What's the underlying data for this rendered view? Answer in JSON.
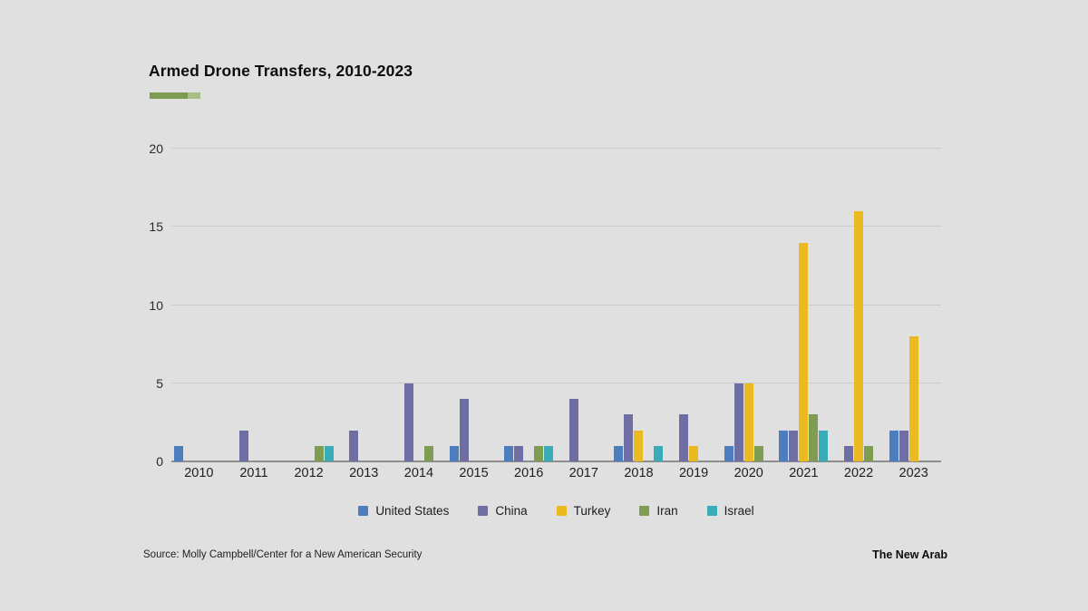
{
  "header": {
    "title": "Armed Drone Transfers, 2010-2023"
  },
  "accent": {
    "dark_color": "#7e9b52",
    "light_color": "#a9bd86"
  },
  "chart_data": {
    "type": "bar",
    "title": "Armed Drone Transfers, 2010-2023",
    "xlabel": "",
    "ylabel": "",
    "ylim": [
      0,
      20
    ],
    "yticks": [
      0,
      5,
      10,
      15,
      20
    ],
    "grid": true,
    "legend_position": "bottom",
    "categories": [
      "2010",
      "2011",
      "2012",
      "2013",
      "2014",
      "2015",
      "2016",
      "2017",
      "2018",
      "2019",
      "2020",
      "2021",
      "2022",
      "2023"
    ],
    "series": [
      {
        "name": "United States",
        "color": "#4e7dbf",
        "values": [
          1,
          0,
          0,
          0,
          0,
          1,
          1,
          0,
          1,
          0,
          1,
          2,
          0,
          2
        ]
      },
      {
        "name": "China",
        "color": "#6e6ea4",
        "values": [
          0,
          2,
          0,
          2,
          5,
          4,
          1,
          4,
          3,
          3,
          5,
          2,
          1,
          2
        ]
      },
      {
        "name": "Turkey",
        "color": "#eaba20",
        "values": [
          0,
          0,
          0,
          0,
          0,
          0,
          0,
          0,
          2,
          1,
          5,
          14,
          16,
          8
        ]
      },
      {
        "name": "Iran",
        "color": "#7e9d52",
        "values": [
          0,
          0,
          1,
          0,
          1,
          0,
          1,
          0,
          0,
          0,
          1,
          3,
          1,
          0
        ]
      },
      {
        "name": "Israel",
        "color": "#3aacb8",
        "values": [
          0,
          0,
          1,
          0,
          0,
          0,
          1,
          0,
          1,
          0,
          0,
          2,
          0,
          0
        ]
      }
    ]
  },
  "footer": {
    "source": "Source: Molly Campbell/Center for a New American Security",
    "brand": "The New Arab"
  }
}
